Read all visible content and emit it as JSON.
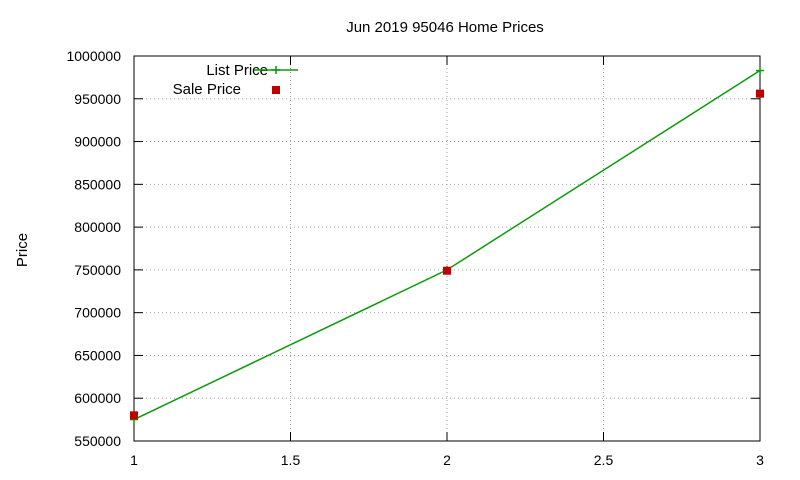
{
  "chart_data": {
    "type": "line",
    "title": "Jun 2019 95046 Home Prices",
    "xlabel": "",
    "ylabel": "Price",
    "xlim": [
      1,
      3
    ],
    "ylim": [
      550000,
      1000000
    ],
    "x_ticks": [
      1,
      1.5,
      2,
      2.5,
      3
    ],
    "x_tick_labels": [
      "1",
      "1.5",
      "2",
      "2.5",
      "3"
    ],
    "y_ticks": [
      550000,
      600000,
      650000,
      700000,
      750000,
      800000,
      850000,
      900000,
      950000,
      1000000
    ],
    "y_tick_labels": [
      "550000",
      "600000",
      "650000",
      "700000",
      "750000",
      "800000",
      "850000",
      "900000",
      "950000",
      "1000000"
    ],
    "grid": true,
    "legend_position": "top-left",
    "series": [
      {
        "name": "List Price",
        "style": "line+cross",
        "color": "#0a9a0a",
        "x": [
          1,
          2,
          3
        ],
        "y": [
          575000,
          750000,
          983000
        ]
      },
      {
        "name": "Sale Price",
        "style": "square",
        "color": "#c00000",
        "x": [
          1,
          2,
          3
        ],
        "y": [
          580000,
          749000,
          956000
        ]
      }
    ]
  }
}
